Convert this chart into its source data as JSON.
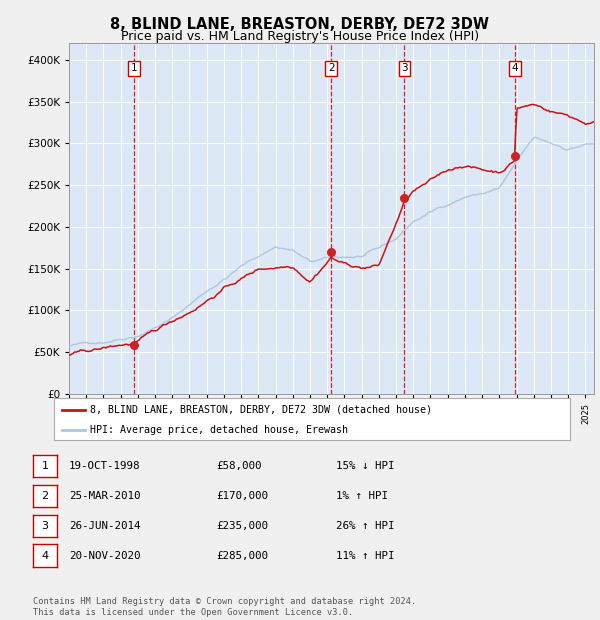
{
  "title": "8, BLIND LANE, BREASTON, DERBY, DE72 3DW",
  "subtitle": "Price paid vs. HM Land Registry's House Price Index (HPI)",
  "hpi_label": "HPI: Average price, detached house, Erewash",
  "property_label": "8, BLIND LANE, BREASTON, DERBY, DE72 3DW (detached house)",
  "footer": "Contains HM Land Registry data © Crown copyright and database right 2024.\nThis data is licensed under the Open Government Licence v3.0.",
  "transactions": [
    {
      "num": 1,
      "date": "19-OCT-1998",
      "price": 58000,
      "pct": "15%",
      "dir": "↓",
      "year": 1998.79
    },
    {
      "num": 2,
      "date": "25-MAR-2010",
      "price": 170000,
      "pct": "1%",
      "dir": "↑",
      "year": 2010.23
    },
    {
      "num": 3,
      "date": "26-JUN-2014",
      "price": 235000,
      "pct": "26%",
      "dir": "↑",
      "year": 2014.49
    },
    {
      "num": 4,
      "date": "20-NOV-2020",
      "price": 285000,
      "pct": "11%",
      "dir": "↑",
      "year": 2020.89
    }
  ],
  "ylim": [
    0,
    420000
  ],
  "xlim_start": 1995.0,
  "xlim_end": 2025.5,
  "plot_bg": "#dce8f5",
  "fig_bg": "#f0f0f0",
  "hpi_color": "#aec6e0",
  "property_color": "#cc1111",
  "dot_color": "#cc2222",
  "vline_color": "#cc0000",
  "grid_color": "#ffffff",
  "title_fontsize": 10.5,
  "subtitle_fontsize": 9,
  "hpi_waypoints_x": [
    1995,
    1997,
    1999,
    2001,
    2003,
    2005,
    2007,
    2008,
    2009,
    2010,
    2011,
    2012,
    2013,
    2014,
    2015,
    2016,
    2017,
    2018,
    2019,
    2020,
    2021,
    2022,
    2023,
    2024,
    2025
  ],
  "hpi_waypoints_y": [
    57000,
    63000,
    74000,
    95000,
    128000,
    158000,
    182000,
    178000,
    163000,
    166000,
    167000,
    168000,
    175000,
    186000,
    207000,
    218000,
    228000,
    238000,
    242000,
    248000,
    278000,
    305000,
    298000,
    292000,
    298000
  ],
  "prop_waypoints_x": [
    1995,
    1997,
    1998,
    1998.79,
    2000,
    2002,
    2004,
    2006,
    2008,
    2009,
    2010.23,
    2011,
    2012,
    2013,
    2014.49,
    2015,
    2016,
    2017,
    2018,
    2019,
    2020,
    2020.89,
    2021,
    2022,
    2023,
    2024,
    2025
  ],
  "prop_waypoints_y": [
    46000,
    52000,
    56000,
    58000,
    70000,
    95000,
    125000,
    148000,
    155000,
    140000,
    170000,
    162000,
    158000,
    160000,
    235000,
    248000,
    258000,
    270000,
    278000,
    272000,
    270000,
    285000,
    348000,
    352000,
    345000,
    340000,
    332000
  ]
}
